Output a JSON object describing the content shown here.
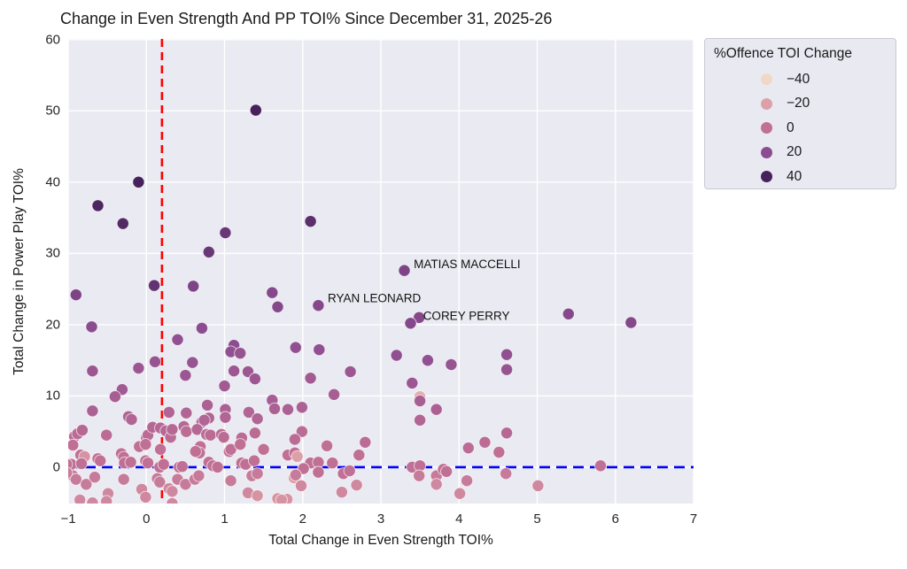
{
  "page": {
    "title": "Change in Even Strength And PP TOI% Since December 31, 2025-26"
  },
  "chart_data": {
    "type": "scatter",
    "title": "Change in Even Strength And PP TOI% Since December 31, 2025-26",
    "xlabel": "Total Change in Even Strength TOI%",
    "ylabel": "Total Change in Power Play TOI%",
    "xlim": [
      -1,
      7
    ],
    "ylim": [
      -5.1,
      60.1
    ],
    "grid": true,
    "plot_background": "#eaeaf2",
    "grid_color": "#ffffff",
    "xticks": {
      "values": [
        -1,
        0,
        1,
        2,
        3,
        4,
        5,
        6,
        7
      ],
      "labels": [
        "−1",
        "0",
        "1",
        "2",
        "3",
        "4",
        "5",
        "6",
        "7"
      ]
    },
    "yticks": {
      "values": [
        0,
        10,
        20,
        30,
        40,
        50,
        60
      ],
      "labels": [
        "0",
        "10",
        "20",
        "30",
        "40",
        "50",
        "60"
      ]
    },
    "reference_lines": {
      "vline": {
        "x": 0.2,
        "color": "#ff0000",
        "style": "dashed"
      },
      "hline": {
        "y": 0,
        "color": "#0000ff",
        "style": "dashed"
      }
    },
    "legend": {
      "title": "%Offence TOI Change",
      "position": "outside upper right",
      "entries": [
        {
          "value": -40,
          "label": "−40"
        },
        {
          "value": -20,
          "label": "−20"
        },
        {
          "value": 0,
          "label": "0"
        },
        {
          "value": 20,
          "label": "20"
        },
        {
          "value": 40,
          "label": "40"
        }
      ]
    },
    "palette": {
      "description": "sequential light-peach to dark-purple mapped to %Offence TOI Change",
      "anchors": [
        {
          "value": -40,
          "color": "#f0d8c5"
        },
        {
          "value": -20,
          "color": "#dda0a8"
        },
        {
          "value": 0,
          "color": "#c06f95"
        },
        {
          "value": 20,
          "color": "#8c4d90"
        },
        {
          "value": 40,
          "color": "#46215c"
        }
      ]
    },
    "annotations": [
      {
        "label": "MATIAS MACCELLI",
        "x": 3.42,
        "y": 28.4
      },
      {
        "label": "RYAN LEONARD",
        "x": 2.32,
        "y": 23.6
      },
      {
        "label": "COREY PERRY",
        "x": 3.54,
        "y": 21.1
      }
    ],
    "marker": {
      "radius": 6.6,
      "edge_color": "rgba(255,255,255,0.7)"
    },
    "points": [
      [
        1.4,
        50.1,
        42
      ],
      [
        -0.1,
        40.0,
        40
      ],
      [
        -0.62,
        36.7,
        38
      ],
      [
        -0.3,
        34.2,
        36
      ],
      [
        2.1,
        34.5,
        34
      ],
      [
        1.01,
        32.9,
        30
      ],
      [
        0.8,
        30.2,
        30
      ],
      [
        0.1,
        25.5,
        32
      ],
      [
        3.3,
        27.6,
        24
      ],
      [
        0.6,
        25.4,
        24
      ],
      [
        -0.9,
        24.2,
        24
      ],
      [
        1.61,
        24.5,
        22
      ],
      [
        2.2,
        22.7,
        22
      ],
      [
        1.68,
        22.5,
        22
      ],
      [
        3.49,
        21.0,
        22
      ],
      [
        3.38,
        20.2,
        22
      ],
      [
        5.4,
        21.5,
        22
      ],
      [
        6.2,
        20.3,
        22
      ],
      [
        -0.7,
        19.7,
        20
      ],
      [
        0.71,
        19.5,
        20
      ],
      [
        0.4,
        17.9,
        18
      ],
      [
        1.12,
        17.1,
        20
      ],
      [
        1.08,
        16.2,
        18
      ],
      [
        1.2,
        16.0,
        16
      ],
      [
        1.91,
        16.8,
        18
      ],
      [
        2.21,
        16.5,
        18
      ],
      [
        4.61,
        15.8,
        18
      ],
      [
        3.2,
        15.7,
        18
      ],
      [
        3.6,
        15.0,
        18
      ],
      [
        0.11,
        14.8,
        16
      ],
      [
        0.59,
        14.7,
        16
      ],
      [
        3.9,
        14.4,
        16
      ],
      [
        -0.1,
        13.9,
        14
      ],
      [
        -0.69,
        13.5,
        14
      ],
      [
        1.12,
        13.5,
        14
      ],
      [
        4.61,
        13.7,
        16
      ],
      [
        1.3,
        13.4,
        14
      ],
      [
        2.61,
        13.4,
        14
      ],
      [
        0.5,
        12.9,
        14
      ],
      [
        1.39,
        12.4,
        14
      ],
      [
        2.1,
        12.5,
        12
      ],
      [
        3.4,
        11.8,
        14
      ],
      [
        1.0,
        11.4,
        12
      ],
      [
        -0.31,
        10.9,
        12
      ],
      [
        -0.4,
        9.9,
        10
      ],
      [
        2.4,
        10.2,
        10
      ],
      [
        1.61,
        9.4,
        10
      ],
      [
        3.5,
        9.9,
        -25
      ],
      [
        3.5,
        9.3,
        10
      ],
      [
        0.78,
        8.7,
        8
      ],
      [
        -0.69,
        7.9,
        8
      ],
      [
        1.64,
        8.2,
        8
      ],
      [
        1.99,
        8.4,
        8
      ],
      [
        1.81,
        8.1,
        8
      ],
      [
        3.71,
        8.1,
        8
      ],
      [
        1.01,
        8.1,
        8
      ],
      [
        0.29,
        7.7,
        6
      ],
      [
        0.51,
        7.6,
        6
      ],
      [
        1.31,
        7.7,
        6
      ],
      [
        -0.23,
        7.1,
        6
      ],
      [
        -0.19,
        6.7,
        6
      ],
      [
        0.8,
        6.9,
        6
      ],
      [
        1.01,
        7.0,
        6
      ],
      [
        1.42,
        6.8,
        6
      ],
      [
        3.5,
        6.6,
        6
      ],
      [
        0.71,
        6.3,
        6
      ],
      [
        0.74,
        6.6,
        6
      ],
      [
        -0.92,
        4.3,
        2
      ],
      [
        -0.88,
        4.7,
        2
      ],
      [
        -0.82,
        5.2,
        4
      ],
      [
        -0.51,
        4.5,
        2
      ],
      [
        0.0,
        4.1,
        2
      ],
      [
        0.02,
        4.5,
        2
      ],
      [
        0.08,
        5.6,
        4
      ],
      [
        0.18,
        5.5,
        4
      ],
      [
        0.25,
        5.1,
        4
      ],
      [
        0.31,
        4.2,
        2
      ],
      [
        0.33,
        5.3,
        4
      ],
      [
        0.48,
        5.7,
        4
      ],
      [
        0.51,
        5.0,
        2
      ],
      [
        0.65,
        5.3,
        4
      ],
      [
        0.77,
        4.6,
        2
      ],
      [
        0.82,
        4.5,
        2
      ],
      [
        0.96,
        4.6,
        2
      ],
      [
        0.99,
        4.2,
        2
      ],
      [
        1.22,
        4.1,
        2
      ],
      [
        1.39,
        4.8,
        2
      ],
      [
        1.99,
        5.0,
        2
      ],
      [
        1.9,
        3.9,
        2
      ],
      [
        2.8,
        3.5,
        2
      ],
      [
        4.61,
        4.8,
        4
      ],
      [
        4.33,
        3.5,
        2
      ],
      [
        -0.94,
        3.1,
        0
      ],
      [
        -0.09,
        2.9,
        0
      ],
      [
        -0.01,
        3.2,
        0
      ],
      [
        0.18,
        2.5,
        0
      ],
      [
        0.69,
        2.9,
        0
      ],
      [
        0.68,
        2.0,
        0
      ],
      [
        0.63,
        2.2,
        0
      ],
      [
        1.06,
        2.2,
        0
      ],
      [
        1.08,
        2.5,
        0
      ],
      [
        1.2,
        3.2,
        0
      ],
      [
        1.5,
        2.5,
        0
      ],
      [
        2.31,
        3.0,
        0
      ],
      [
        1.81,
        1.7,
        0
      ],
      [
        1.9,
        2.0,
        0
      ],
      [
        1.93,
        1.5,
        -20
      ],
      [
        2.72,
        1.7,
        0
      ],
      [
        4.51,
        2.1,
        0
      ],
      [
        4.12,
        2.7,
        2
      ],
      [
        -0.84,
        1.7,
        0
      ],
      [
        -0.79,
        1.5,
        -15
      ],
      [
        -0.96,
        0.4,
        0
      ],
      [
        -0.83,
        0.5,
        0
      ],
      [
        -0.62,
        1.2,
        0
      ],
      [
        -0.59,
        0.9,
        0
      ],
      [
        -0.32,
        1.9,
        0
      ],
      [
        -0.29,
        1.4,
        0
      ],
      [
        -0.28,
        0.6,
        0
      ],
      [
        -0.2,
        0.7,
        0
      ],
      [
        -0.01,
        0.9,
        0
      ],
      [
        0.02,
        0.6,
        0
      ],
      [
        0.17,
        0.0,
        0
      ],
      [
        0.22,
        0.4,
        0
      ],
      [
        0.42,
        0.0,
        0
      ],
      [
        0.46,
        0.1,
        0
      ],
      [
        0.8,
        0.7,
        0
      ],
      [
        0.85,
        0.2,
        0
      ],
      [
        0.91,
        0.0,
        0
      ],
      [
        1.22,
        0.6,
        0
      ],
      [
        1.27,
        0.4,
        0
      ],
      [
        1.38,
        0.9,
        0
      ],
      [
        2.1,
        0.6,
        0
      ],
      [
        2.2,
        0.7,
        0
      ],
      [
        2.38,
        0.6,
        0
      ],
      [
        3.4,
        0.0,
        0
      ],
      [
        3.5,
        0.2,
        0
      ],
      [
        5.81,
        0.2,
        0
      ],
      [
        -1.02,
        0.4,
        0
      ],
      [
        -0.94,
        -1.2,
        -5
      ],
      [
        -0.9,
        -1.7,
        -5
      ],
      [
        -0.77,
        -2.4,
        -5
      ],
      [
        -0.66,
        -1.4,
        -5
      ],
      [
        -0.49,
        -3.7,
        -10
      ],
      [
        -0.51,
        -4.8,
        -10
      ],
      [
        -0.29,
        -1.7,
        -5
      ],
      [
        -0.06,
        -3.1,
        -10
      ],
      [
        -0.01,
        -4.2,
        -10
      ],
      [
        0.14,
        -1.6,
        -5
      ],
      [
        0.17,
        -2.1,
        -5
      ],
      [
        0.29,
        -3.0,
        -10
      ],
      [
        0.33,
        -3.4,
        -10
      ],
      [
        0.4,
        -1.7,
        -5
      ],
      [
        0.5,
        -2.4,
        -5
      ],
      [
        0.62,
        -1.7,
        -5
      ],
      [
        0.67,
        -1.2,
        -5
      ],
      [
        1.08,
        -1.9,
        -5
      ],
      [
        1.3,
        -3.6,
        -10
      ],
      [
        1.35,
        -1.2,
        -5
      ],
      [
        1.42,
        -0.9,
        -5
      ],
      [
        -0.69,
        -5.0,
        -10
      ],
      [
        2.01,
        -0.2,
        0
      ],
      [
        2.2,
        -0.7,
        0
      ],
      [
        2.52,
        -0.9,
        0
      ],
      [
        2.6,
        -0.5,
        0
      ],
      [
        1.89,
        -1.5,
        -20
      ],
      [
        1.91,
        -1.1,
        -5
      ],
      [
        1.98,
        -2.6,
        -10
      ],
      [
        2.69,
        -2.5,
        -10
      ],
      [
        2.5,
        -3.5,
        -10
      ],
      [
        1.8,
        -4.5,
        -15
      ],
      [
        3.49,
        -1.2,
        -5
      ],
      [
        3.71,
        -1.2,
        -5
      ],
      [
        3.8,
        -0.3,
        0
      ],
      [
        3.84,
        -0.6,
        0
      ],
      [
        3.71,
        -2.4,
        -10
      ],
      [
        4.1,
        -1.9,
        -5
      ],
      [
        4.01,
        -3.7,
        -10
      ],
      [
        4.6,
        -0.9,
        -5
      ],
      [
        5.01,
        -2.6,
        -10
      ],
      [
        1.42,
        -4.0,
        -15
      ],
      [
        1.68,
        -4.4,
        -15
      ],
      [
        0.33,
        -5.1,
        -10
      ],
      [
        -0.85,
        -4.6,
        -10
      ],
      [
        -1.02,
        -0.8,
        -5
      ],
      [
        1.73,
        -4.6,
        -15
      ]
    ]
  }
}
